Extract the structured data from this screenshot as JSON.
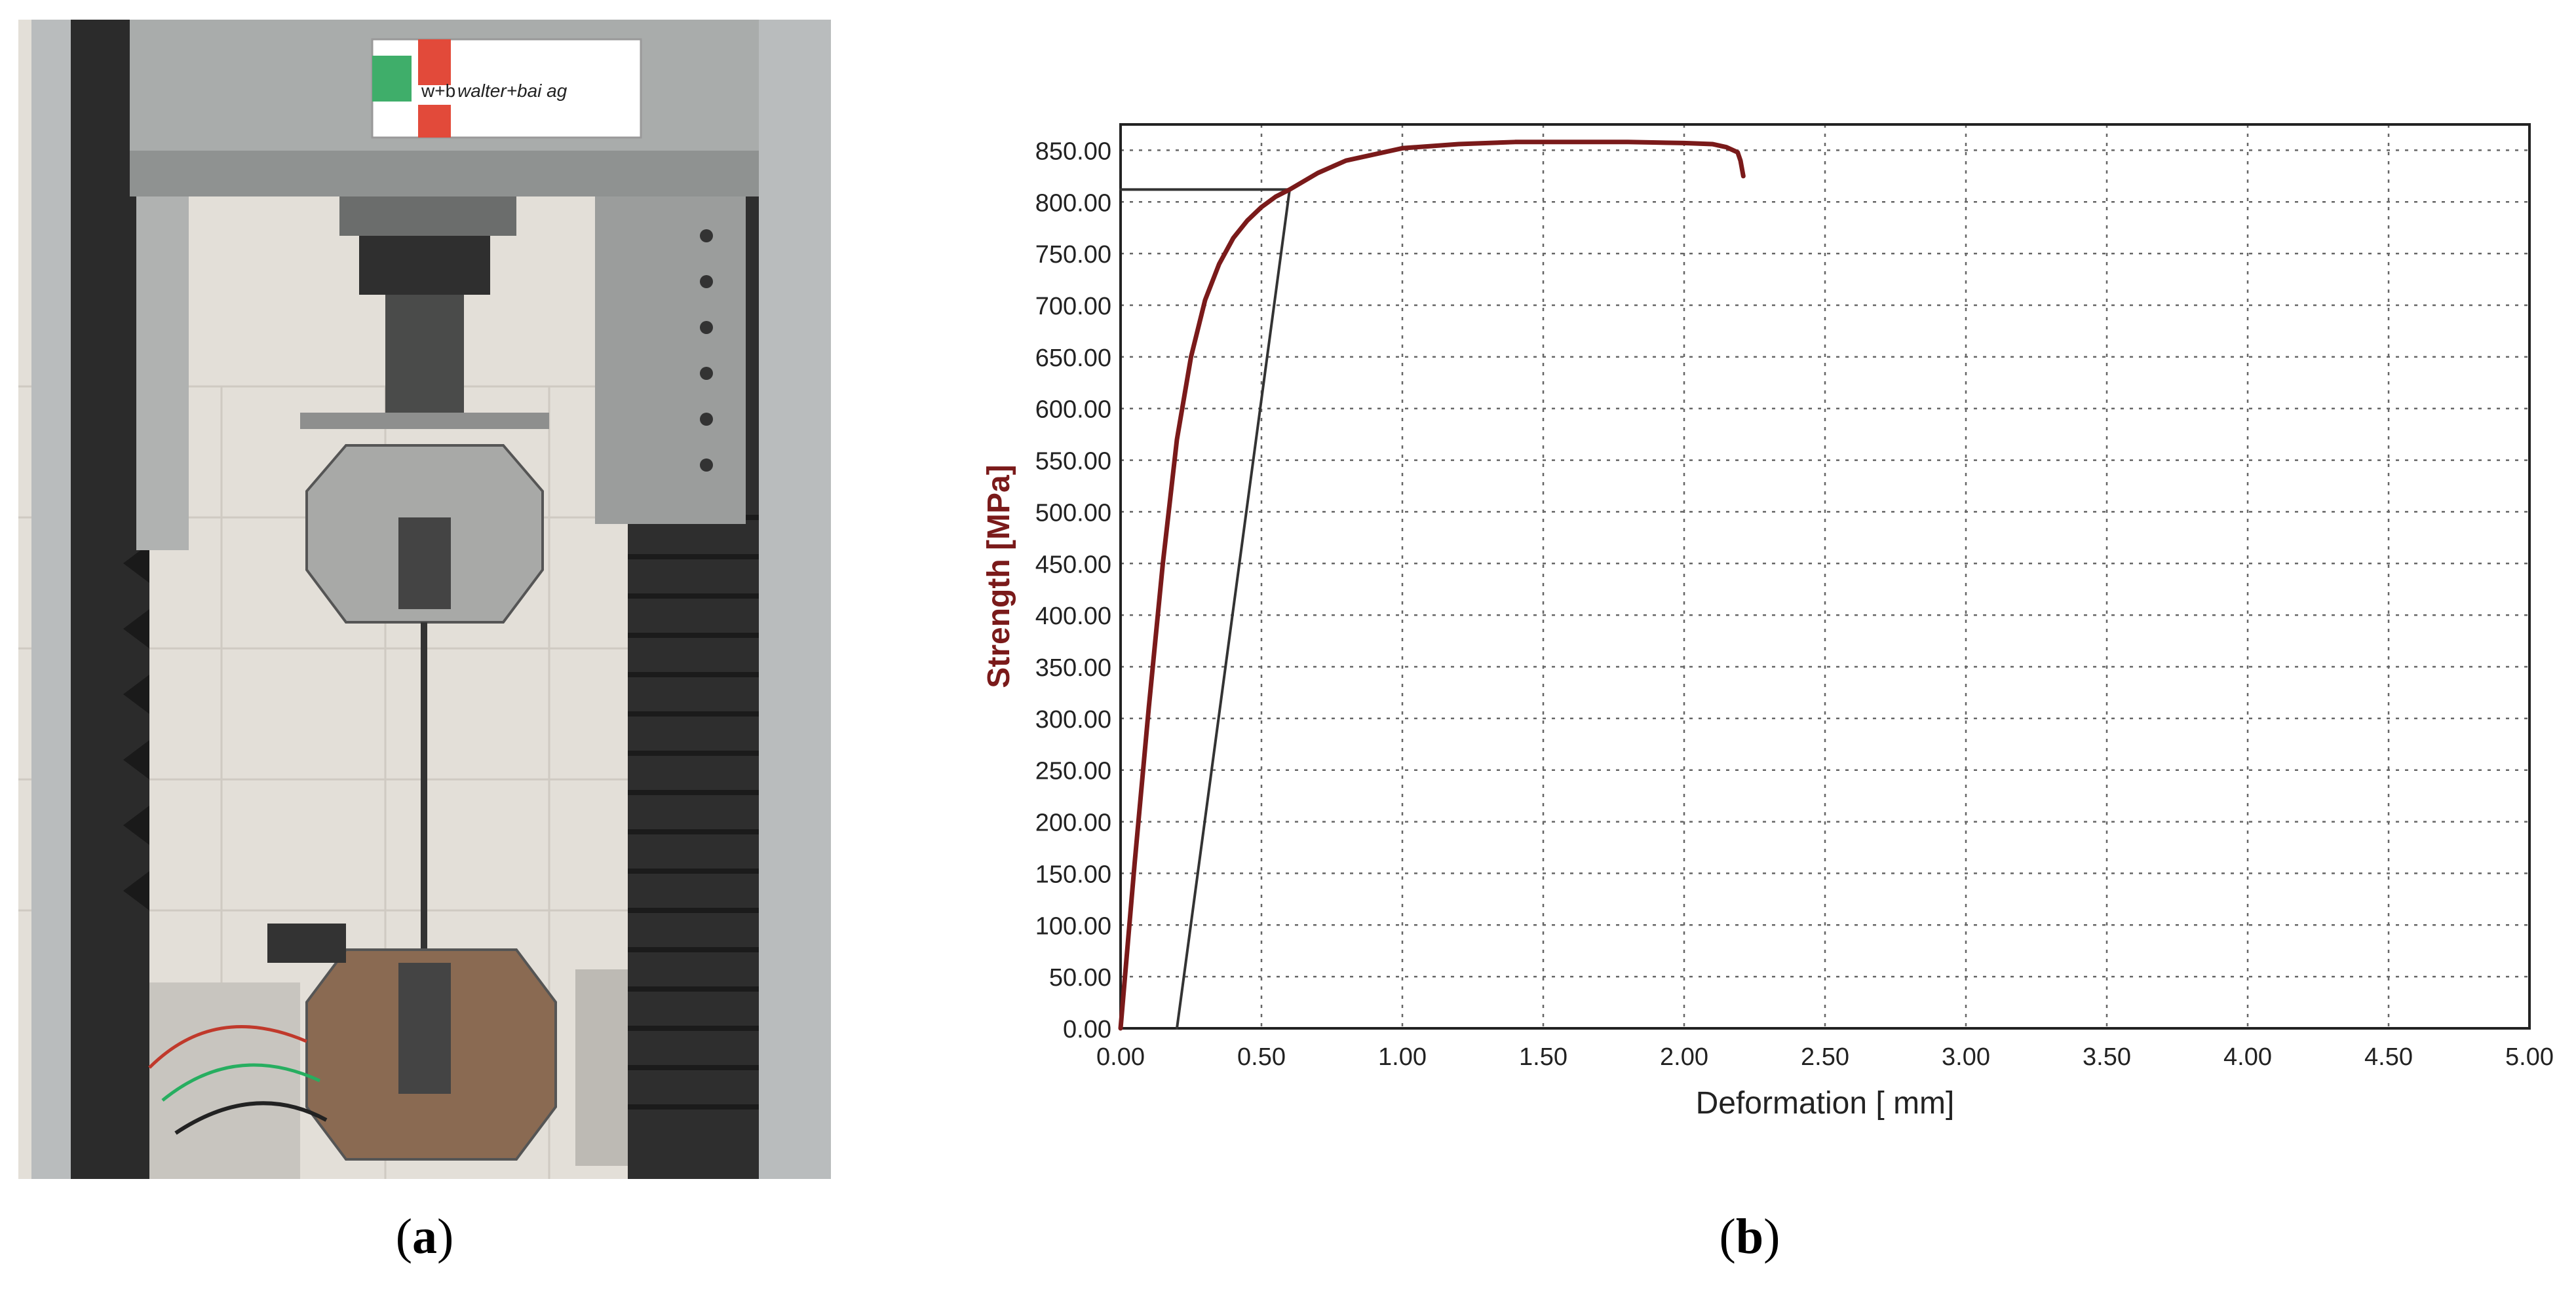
{
  "panels": {
    "a": {
      "caption_open": "(",
      "caption_letter": "a",
      "caption_close": ")"
    },
    "b": {
      "caption_open": "(",
      "caption_letter": "b",
      "caption_close": ")"
    }
  },
  "photo": {
    "description_icon": "tensile-testing-machine",
    "logo_line1": "w+b",
    "logo_line2": "walter+bai ag"
  },
  "chart_data": {
    "type": "line",
    "title": "",
    "xlabel": "Deformation [ mm]",
    "ylabel": "Strength [MPa]",
    "xlim": [
      0,
      5
    ],
    "ylim": [
      0,
      875
    ],
    "x_ticks": [
      "0.00",
      "0.50",
      "1.00",
      "1.50",
      "2.00",
      "2.50",
      "3.00",
      "3.50",
      "4.00",
      "4.50",
      "5.00"
    ],
    "y_ticks": [
      "0.00",
      "50.00",
      "100.00",
      "150.00",
      "200.00",
      "250.00",
      "300.00",
      "350.00",
      "400.00",
      "450.00",
      "500.00",
      "550.00",
      "600.00",
      "650.00",
      "700.00",
      "750.00",
      "800.00",
      "850.00"
    ],
    "grid": true,
    "series": [
      {
        "color": "#7a1a1a",
        "x": [
          0.0,
          0.05,
          0.1,
          0.15,
          0.2,
          0.25,
          0.3,
          0.35,
          0.4,
          0.45,
          0.5,
          0.55,
          0.6,
          0.7,
          0.8,
          1.0,
          1.2,
          1.4,
          1.6,
          1.8,
          2.0,
          2.1,
          2.15,
          2.19,
          2.2,
          2.21
        ],
        "y": [
          0,
          160,
          310,
          450,
          570,
          650,
          705,
          740,
          765,
          782,
          795,
          805,
          812,
          828,
          840,
          852,
          856,
          858,
          858,
          858,
          857,
          856,
          853,
          848,
          840,
          825
        ]
      }
    ],
    "offset_line": {
      "color": "#333333",
      "x": [
        0.2,
        0.6
      ],
      "y": [
        0,
        812
      ]
    },
    "yield_line": {
      "color": "#333333",
      "x": [
        0.0,
        0.6
      ],
      "y": [
        812,
        812
      ]
    }
  }
}
